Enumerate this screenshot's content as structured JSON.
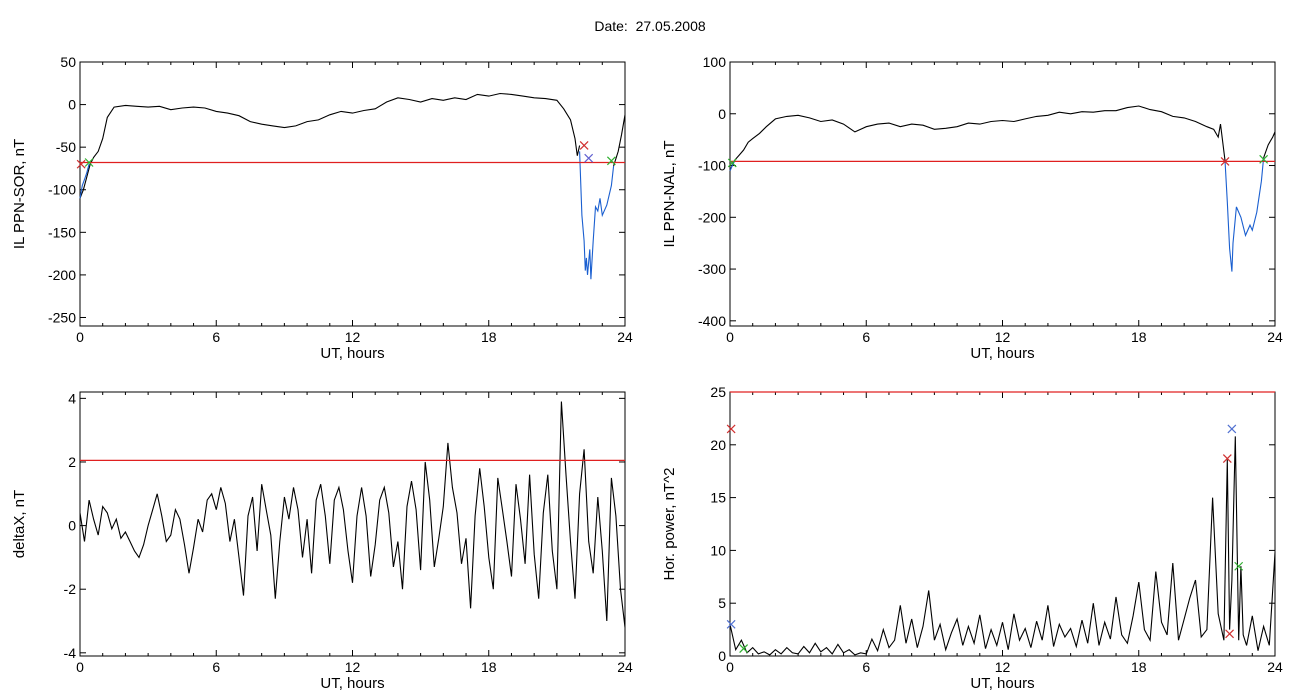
{
  "page_title": "Date:  27.05.2008",
  "chart_data": [
    {
      "type": "line",
      "id": "p1",
      "xlabel": "UT, hours",
      "ylabel": "IL PPN-SOR, nT",
      "xlim": [
        0,
        24
      ],
      "ylim": [
        -260,
        50
      ],
      "xticks": [
        0,
        6,
        12,
        18,
        24
      ],
      "yticks": [
        50,
        0,
        -50,
        -100,
        -150,
        -200,
        -250
      ],
      "threshold": -68,
      "series": [
        {
          "color": "#000000",
          "x": [
            0,
            0.15,
            0.3,
            0.45,
            0.6,
            0.8,
            1.0,
            1.2,
            1.5,
            2.0,
            2.5,
            3.0,
            3.5,
            4.0,
            4.5,
            5.0,
            5.5,
            6.0,
            6.5,
            7.0,
            7.5,
            8.0,
            8.5,
            9.0,
            9.5,
            10.0,
            10.5,
            11.0,
            11.5,
            12.0,
            12.5,
            13.0,
            13.5,
            14.0,
            14.5,
            15.0,
            15.5,
            16.0,
            16.5,
            17.0,
            17.5,
            18.0,
            18.5,
            19.0,
            19.5,
            20.0,
            20.5,
            21.0,
            21.3,
            21.6,
            21.8,
            21.9,
            22.0
          ],
          "y": [
            -110,
            -100,
            -85,
            -70,
            -62,
            -55,
            -40,
            -15,
            -3,
            -1,
            -2,
            -3,
            -2,
            -6,
            -4,
            -3,
            -4,
            -8,
            -10,
            -13,
            -20,
            -23,
            -25,
            -27,
            -25,
            -20,
            -18,
            -12,
            -8,
            -10,
            -7,
            -5,
            3,
            8,
            6,
            3,
            7,
            5,
            8,
            6,
            12,
            10,
            13,
            12,
            10,
            8,
            7,
            5,
            -5,
            -18,
            -40,
            -60,
            -48
          ]
        },
        {
          "color": "#1a5fd0",
          "x": [
            22.0,
            22.1,
            22.2,
            22.25,
            22.3,
            22.35,
            22.45,
            22.5,
            22.6,
            22.7,
            22.8,
            22.9,
            23.0,
            23.2,
            23.4,
            23.5
          ],
          "y": [
            -55,
            -130,
            -160,
            -195,
            -180,
            -200,
            -170,
            -205,
            -160,
            -120,
            -125,
            -110,
            -130,
            -118,
            -95,
            -72
          ]
        },
        {
          "color": "#1a5fd0",
          "x": [
            0,
            0.1,
            0.2,
            0.3,
            0.4
          ],
          "y": [
            -110,
            -95,
            -88,
            -80,
            -70
          ]
        },
        {
          "color": "#000000",
          "x": [
            23.5,
            23.7,
            23.85,
            24
          ],
          "y": [
            -72,
            -55,
            -35,
            -12
          ]
        }
      ],
      "markers": [
        {
          "x": 0.05,
          "y": -70,
          "color": "#d03030",
          "symbol": "x"
        },
        {
          "x": 0.4,
          "y": -68,
          "color": "#30b030",
          "symbol": "x"
        },
        {
          "x": 22.2,
          "y": -48,
          "color": "#d03030",
          "symbol": "x"
        },
        {
          "x": 22.4,
          "y": -63,
          "color": "#6060d0",
          "symbol": "x"
        },
        {
          "x": 23.4,
          "y": -66,
          "color": "#30b030",
          "symbol": "x"
        }
      ]
    },
    {
      "type": "line",
      "id": "p2",
      "xlabel": "UT, hours",
      "ylabel": "IL PPN-NAL, nT",
      "xlim": [
        0,
        24
      ],
      "ylim": [
        -410,
        100
      ],
      "xticks": [
        0,
        6,
        12,
        18,
        24
      ],
      "yticks": [
        100,
        0,
        -100,
        -200,
        -300,
        -400
      ],
      "threshold": -92,
      "series": [
        {
          "color": "#000000",
          "x": [
            0,
            0.2,
            0.4,
            0.6,
            0.8,
            1.0,
            1.3,
            1.6,
            2.0,
            2.5,
            3.0,
            3.5,
            4.0,
            4.5,
            5.0,
            5.5,
            6.0,
            6.5,
            7.0,
            7.5,
            8.0,
            8.5,
            9.0,
            9.5,
            10.0,
            10.5,
            11.0,
            11.5,
            12.0,
            12.5,
            13.0,
            13.5,
            14.0,
            14.5,
            15.0,
            15.5,
            16.0,
            16.5,
            17.0,
            17.5,
            18.0,
            18.5,
            19.0,
            19.5,
            20.0,
            20.5,
            21.0,
            21.3,
            21.5,
            21.6,
            21.8
          ],
          "y": [
            -110,
            -90,
            -80,
            -70,
            -55,
            -48,
            -38,
            -25,
            -10,
            -5,
            -3,
            -8,
            -15,
            -12,
            -20,
            -35,
            -25,
            -20,
            -18,
            -25,
            -20,
            -22,
            -30,
            -28,
            -25,
            -18,
            -20,
            -15,
            -13,
            -15,
            -10,
            -5,
            -3,
            3,
            0,
            4,
            3,
            6,
            6,
            12,
            15,
            8,
            4,
            -5,
            -8,
            -15,
            -25,
            -30,
            -45,
            -20,
            -90
          ]
        },
        {
          "color": "#1a5fd0",
          "x": [
            21.8,
            21.9,
            22.0,
            22.1,
            22.15,
            22.3,
            22.5,
            22.7,
            22.9,
            23.0,
            23.2,
            23.4,
            23.5
          ],
          "y": [
            -90,
            -170,
            -260,
            -305,
            -250,
            -180,
            -200,
            -235,
            -215,
            -225,
            -190,
            -130,
            -85
          ]
        },
        {
          "color": "#1a5fd0",
          "x": [
            0,
            0.1,
            0.2
          ],
          "y": [
            -110,
            -100,
            -92
          ]
        },
        {
          "color": "#000000",
          "x": [
            23.5,
            23.7,
            23.9,
            24
          ],
          "y": [
            -85,
            -60,
            -45,
            -35
          ]
        }
      ],
      "markers": [
        {
          "x": 0.1,
          "y": -95,
          "color": "#30b030",
          "symbol": "x"
        },
        {
          "x": 21.8,
          "y": -92,
          "color": "#d03030",
          "symbol": "x"
        },
        {
          "x": 23.5,
          "y": -88,
          "color": "#30b030",
          "symbol": "x"
        }
      ]
    },
    {
      "type": "line",
      "id": "p3",
      "xlabel": "UT, hours",
      "ylabel": "deltaX, nT",
      "xlim": [
        0,
        24
      ],
      "ylim": [
        -4.1,
        4.2
      ],
      "xticks": [
        0,
        6,
        12,
        18,
        24
      ],
      "yticks": [
        4,
        2,
        0,
        -2,
        -4
      ],
      "threshold": 2.05,
      "series": [
        {
          "color": "#000000",
          "x": [
            0,
            0.2,
            0.4,
            0.6,
            0.8,
            1.0,
            1.2,
            1.4,
            1.6,
            1.8,
            2.0,
            2.2,
            2.4,
            2.6,
            2.8,
            3.0,
            3.2,
            3.4,
            3.6,
            3.8,
            4.0,
            4.2,
            4.4,
            4.6,
            4.8,
            5.0,
            5.2,
            5.4,
            5.6,
            5.8,
            6.0,
            6.2,
            6.4,
            6.6,
            6.8,
            7.0,
            7.2,
            7.4,
            7.6,
            7.8,
            8.0,
            8.2,
            8.4,
            8.6,
            8.8,
            9.0,
            9.2,
            9.4,
            9.6,
            9.8,
            10.0,
            10.2,
            10.4,
            10.6,
            10.8,
            11.0,
            11.2,
            11.4,
            11.6,
            11.8,
            12.0,
            12.2,
            12.4,
            12.6,
            12.8,
            13.0,
            13.2,
            13.4,
            13.6,
            13.8,
            14.0,
            14.2,
            14.4,
            14.6,
            14.8,
            15.0,
            15.2,
            15.4,
            15.6,
            15.8,
            16.0,
            16.2,
            16.4,
            16.6,
            16.8,
            17.0,
            17.2,
            17.4,
            17.6,
            17.8,
            18.0,
            18.2,
            18.4,
            18.6,
            18.8,
            19.0,
            19.2,
            19.4,
            19.6,
            19.8,
            20.0,
            20.2,
            20.4,
            20.6,
            20.8,
            21.0,
            21.2,
            21.4,
            21.6,
            21.8,
            22.0,
            22.2,
            22.4,
            22.6,
            22.8,
            23.0,
            23.2,
            23.4,
            23.6,
            23.8,
            24.0
          ],
          "y": [
            0.4,
            -0.5,
            0.8,
            0.2,
            -0.3,
            0.6,
            0.4,
            -0.1,
            0.2,
            -0.4,
            -0.2,
            -0.5,
            -0.8,
            -1.0,
            -0.6,
            0.0,
            0.5,
            1.0,
            0.3,
            -0.5,
            -0.3,
            0.5,
            0.2,
            -0.6,
            -1.5,
            -0.7,
            0.2,
            -0.2,
            0.8,
            1.0,
            0.5,
            1.2,
            0.7,
            -0.5,
            0.2,
            -1.0,
            -2.2,
            0.3,
            0.9,
            -0.8,
            1.3,
            0.5,
            -0.3,
            -2.3,
            -0.5,
            0.9,
            0.2,
            1.2,
            0.5,
            -1.0,
            0.2,
            -1.5,
            0.8,
            1.3,
            0.3,
            -1.2,
            0.8,
            1.2,
            0.5,
            -0.8,
            -1.8,
            0.3,
            1.2,
            0.3,
            -1.6,
            -0.6,
            0.8,
            1.2,
            0.4,
            -1.3,
            -0.5,
            -2.0,
            0.6,
            1.4,
            0.5,
            -1.4,
            2.0,
            0.8,
            -1.3,
            -0.4,
            0.6,
            2.6,
            1.2,
            0.4,
            -1.2,
            -0.4,
            -2.6,
            0.3,
            1.8,
            0.6,
            -1.0,
            -2.0,
            1.5,
            0.5,
            -0.5,
            -1.6,
            1.3,
            0.2,
            -1.2,
            1.6,
            -0.9,
            -2.3,
            0.4,
            1.6,
            -0.8,
            -2.0,
            3.9,
            1.6,
            -0.5,
            -2.3,
            1.0,
            2.4,
            -0.5,
            -1.5,
            0.9,
            -0.8,
            -3.0,
            1.5,
            0.3,
            -2.0,
            -3.2
          ]
        }
      ],
      "markers": []
    },
    {
      "type": "line",
      "id": "p4",
      "xlabel": "UT, hours",
      "ylabel": "Hor. power, nT^2",
      "xlim": [
        0,
        24
      ],
      "ylim": [
        0,
        25
      ],
      "xticks": [
        0,
        6,
        12,
        18,
        24
      ],
      "yticks": [
        25,
        20,
        15,
        10,
        5,
        0
      ],
      "threshold": 25,
      "series": [
        {
          "color": "#000000",
          "x": [
            0,
            0.25,
            0.5,
            0.75,
            1.0,
            1.25,
            1.5,
            1.75,
            2.0,
            2.25,
            2.5,
            2.75,
            3.0,
            3.25,
            3.5,
            3.75,
            4.0,
            4.25,
            4.5,
            4.75,
            5.0,
            5.25,
            5.5,
            5.75,
            6.0,
            6.25,
            6.5,
            6.75,
            7.0,
            7.25,
            7.5,
            7.75,
            8.0,
            8.25,
            8.5,
            8.75,
            9.0,
            9.25,
            9.5,
            9.75,
            10.0,
            10.25,
            10.5,
            10.75,
            11.0,
            11.25,
            11.5,
            11.75,
            12.0,
            12.25,
            12.5,
            12.75,
            13.0,
            13.25,
            13.5,
            13.75,
            14.0,
            14.25,
            14.5,
            14.75,
            15.0,
            15.25,
            15.5,
            15.75,
            16.0,
            16.25,
            16.5,
            16.75,
            17.0,
            17.25,
            17.5,
            17.75,
            18.0,
            18.25,
            18.5,
            18.75,
            19.0,
            19.25,
            19.5,
            19.75,
            20.0,
            20.25,
            20.5,
            20.75,
            21.0,
            21.25,
            21.5,
            21.75,
            21.9,
            22.0,
            22.1,
            22.25,
            22.4,
            22.5,
            22.6,
            22.75,
            23.0,
            23.25,
            23.5,
            23.75,
            24.0
          ],
          "y": [
            3.0,
            0.6,
            1.5,
            0.3,
            0.8,
            0.2,
            0.4,
            0.1,
            0.6,
            0.2,
            0.8,
            0.3,
            0.2,
            0.9,
            0.3,
            1.2,
            0.4,
            0.8,
            0.2,
            1.1,
            0.3,
            0.6,
            0.1,
            0.3,
            0.2,
            1.6,
            0.5,
            2.5,
            0.8,
            1.5,
            4.8,
            1.2,
            3.5,
            0.8,
            2.8,
            6.2,
            1.5,
            3.0,
            0.6,
            2.2,
            3.5,
            1.0,
            2.8,
            1.2,
            3.9,
            0.7,
            2.5,
            1.0,
            3.2,
            0.6,
            4.0,
            1.5,
            2.6,
            0.8,
            3.3,
            1.5,
            4.8,
            0.9,
            3.0,
            1.8,
            2.6,
            0.9,
            3.4,
            1.2,
            5.0,
            1.0,
            3.2,
            1.6,
            5.6,
            2.0,
            1.2,
            3.8,
            7.0,
            2.5,
            1.5,
            8.0,
            3.2,
            2.0,
            8.8,
            1.5,
            3.5,
            5.5,
            7.2,
            1.8,
            2.5,
            15.0,
            4.0,
            1.5,
            18.6,
            2.5,
            7.2,
            20.8,
            1.5,
            8.5,
            2.0,
            1.0,
            3.8,
            0.5,
            2.8,
            1.0,
            9.8
          ]
        }
      ],
      "markers": [
        {
          "x": 0.05,
          "y": 21.5,
          "color": "#d03030",
          "symbol": "x"
        },
        {
          "x": 0.05,
          "y": 3.0,
          "color": "#5070d0",
          "symbol": "x"
        },
        {
          "x": 0.6,
          "y": 0.7,
          "color": "#30b030",
          "symbol": "x"
        },
        {
          "x": 21.9,
          "y": 18.7,
          "color": "#d03030",
          "symbol": "x"
        },
        {
          "x": 22.1,
          "y": 21.5,
          "color": "#5070d0",
          "symbol": "x"
        },
        {
          "x": 22.0,
          "y": 2.1,
          "color": "#d03030",
          "symbol": "x"
        },
        {
          "x": 22.4,
          "y": 8.5,
          "color": "#30b030",
          "symbol": "x"
        }
      ]
    }
  ]
}
